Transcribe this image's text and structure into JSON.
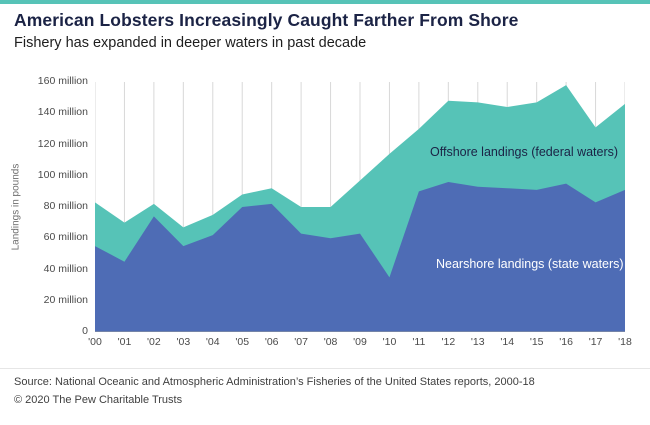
{
  "header": {
    "title": "American Lobsters Increasingly Caught Farther From Shore",
    "subtitle": "Fishery has expanded in deeper waters in past decade"
  },
  "chart_data": {
    "type": "area",
    "stacked": true,
    "x": [
      "'00",
      "'01",
      "'02",
      "'03",
      "'04",
      "'05",
      "'06",
      "'07",
      "'08",
      "'09",
      "'10",
      "'11",
      "'12",
      "'13",
      "'14",
      "'15",
      "'16",
      "'17",
      "'18"
    ],
    "series": [
      {
        "name": "Nearshore landings (state waters)",
        "color": "#4e6cb5",
        "values": [
          55,
          45,
          74,
          55,
          62,
          80,
          82,
          63,
          60,
          63,
          35,
          90,
          96,
          93,
          92,
          91,
          95,
          83,
          91
        ]
      },
      {
        "name": "Offshore landings (federal waters)",
        "color": "#56c3b7",
        "values": [
          28,
          25,
          8,
          12,
          13,
          8,
          10,
          17,
          20,
          34,
          79,
          40,
          52,
          54,
          52,
          56,
          63,
          48,
          55
        ]
      }
    ],
    "ylabel": "Landings in pounds",
    "xlabel": "",
    "y_ticks": [
      "0",
      "20 million",
      "40 million",
      "60 million",
      "80 million",
      "100 million",
      "120 million",
      "140 million",
      "160 million"
    ],
    "ylim": [
      0,
      160
    ],
    "grid": "vertical",
    "legend_position": "in-plot annotations",
    "annotations": [
      {
        "text": "Offshore landings (federal waters)",
        "color": "#1b2345"
      },
      {
        "text": "Nearshore landings (state waters)",
        "color": "#ffffff"
      }
    ]
  },
  "footer": {
    "source": "Source: National Oceanic and Atmospheric Administration’s Fisheries of the United States reports, 2000-18",
    "copyright": "© 2020 The Pew Charitable Trusts"
  },
  "colors": {
    "accent_teal": "#56c3b7",
    "nearshore_blue": "#4e6cb5",
    "title_navy": "#1b2345"
  }
}
